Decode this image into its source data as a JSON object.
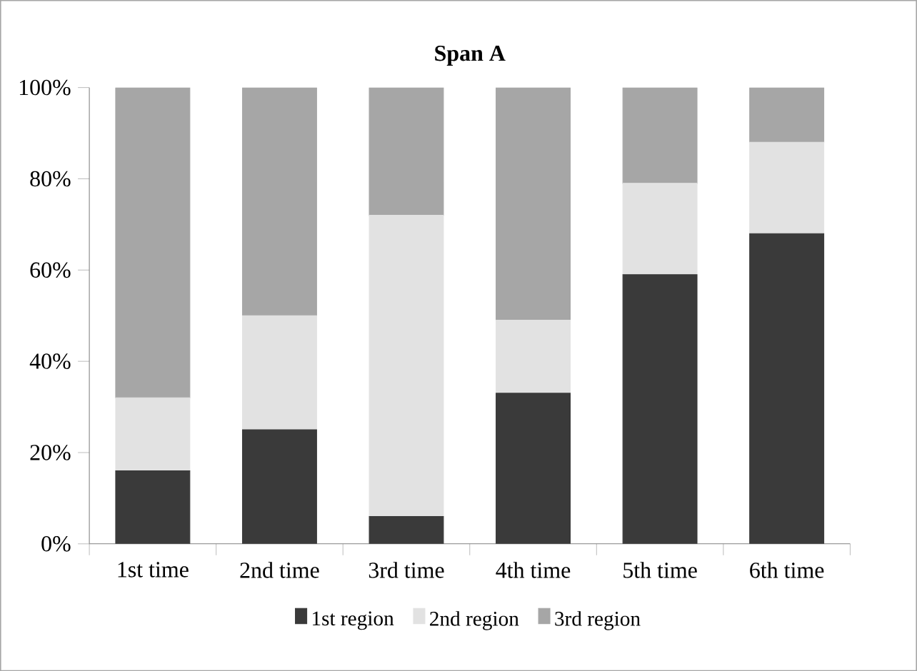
{
  "chart_data": {
    "type": "bar",
    "title": "Span A",
    "stacked": true,
    "categories": [
      "1st time",
      "2nd time",
      "3rd time",
      "4th time",
      "5th time",
      "6th time"
    ],
    "series": [
      {
        "name": "1st region",
        "color": "#3a3a3a",
        "values": [
          16,
          25,
          6,
          33,
          59,
          68
        ]
      },
      {
        "name": "2nd region",
        "color": "#e2e2e2",
        "values": [
          16,
          25,
          66,
          16,
          20,
          20
        ]
      },
      {
        "name": "3rd region",
        "color": "#a6a6a6",
        "values": [
          68,
          50,
          28,
          51,
          21,
          12
        ]
      }
    ],
    "ylim": [
      0,
      100
    ],
    "yticks": [
      {
        "value": 0,
        "label": "0%"
      },
      {
        "value": 20,
        "label": "20%"
      },
      {
        "value": 40,
        "label": "40%"
      },
      {
        "value": 60,
        "label": "60%"
      },
      {
        "value": 80,
        "label": "80%"
      },
      {
        "value": 100,
        "label": "100%"
      }
    ],
    "legend": "bottom"
  }
}
